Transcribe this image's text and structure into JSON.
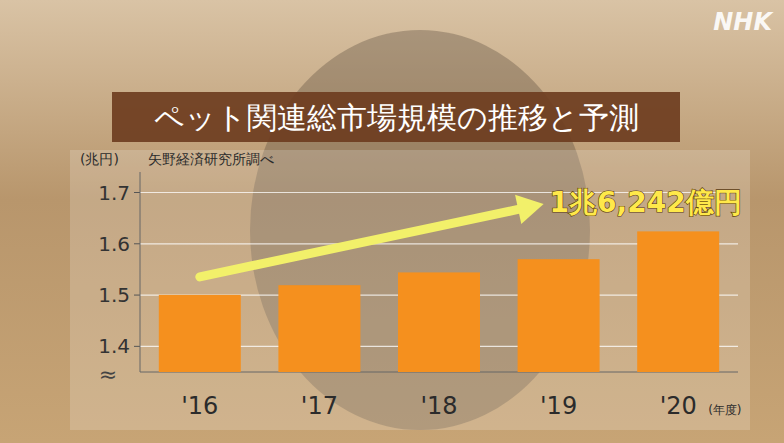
{
  "chart_data": {
    "type": "bar",
    "title": "ペット関連総市場規模の推移と予測",
    "subtitle": "矢野経済研究所調べ",
    "y_label": "(兆円)",
    "x_label": "(年度)",
    "y_break_symbol": "≈",
    "annotation": "1兆6,242億円",
    "logo": "NHK",
    "categories": [
      "'16",
      "'17",
      "'18",
      "'19",
      "'20"
    ],
    "values": [
      1.5004,
      1.5193,
      1.5442,
      1.57,
      1.6242
    ],
    "color": "#f5901e",
    "ylim": [
      1.35,
      1.74
    ],
    "yticks": [
      1.4,
      1.5,
      1.6,
      1.7
    ],
    "grid": true
  }
}
